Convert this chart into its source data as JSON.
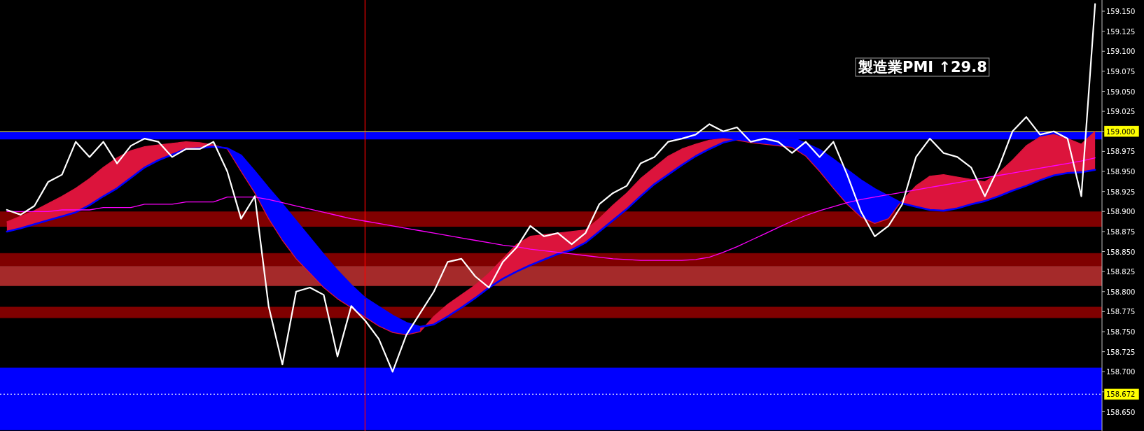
{
  "chart_data": {
    "type": "line",
    "categories": [
      null,
      null,
      null,
      null,
      null,
      null,
      null,
      null,
      null,
      null,
      null,
      null,
      null,
      null,
      null,
      null,
      null,
      null,
      null,
      null,
      null,
      null,
      null,
      null,
      null,
      null,
      null,
      null,
      null,
      null,
      null,
      null,
      null,
      null,
      null,
      null,
      null,
      null,
      null,
      null,
      null,
      null,
      null,
      null,
      null,
      null,
      null,
      null,
      null,
      null,
      null,
      null,
      null,
      null,
      null,
      null,
      null,
      null,
      null,
      null,
      null,
      null,
      null,
      null,
      null,
      null,
      null,
      null,
      null,
      null,
      null,
      null,
      null,
      null,
      null,
      null,
      null,
      null,
      null,
      null
    ],
    "ylim": [
      158.626,
      159.164
    ],
    "yticks": [
      {
        "value": 158.65,
        "label": "158.650"
      },
      {
        "value": 158.675,
        "label": null
      },
      {
        "value": 158.7,
        "label": "158.700"
      },
      {
        "value": 158.725,
        "label": "158.725"
      },
      {
        "value": 158.75,
        "label": "158.750"
      },
      {
        "value": 158.775,
        "label": "158.775"
      },
      {
        "value": 158.8,
        "label": "158.800"
      },
      {
        "value": 158.825,
        "label": "158.825"
      },
      {
        "value": 158.85,
        "label": "158.850"
      },
      {
        "value": 158.875,
        "label": "158.875"
      },
      {
        "value": 158.9,
        "label": "158.900"
      },
      {
        "value": 158.925,
        "label": "158.925"
      },
      {
        "value": 158.95,
        "label": "158.950"
      },
      {
        "value": 158.975,
        "label": "158.975"
      },
      {
        "value": 159.0,
        "label": null
      },
      {
        "value": 159.025,
        "label": "159.025"
      },
      {
        "value": 159.05,
        "label": "159.050"
      },
      {
        "value": 159.075,
        "label": "159.075"
      },
      {
        "value": 159.1,
        "label": "159.100"
      },
      {
        "value": 159.125,
        "label": "159.125"
      },
      {
        "value": 159.15,
        "label": "159.150"
      }
    ],
    "series": [
      {
        "type": "line",
        "color": "#dc143c",
        "values": [
          158.887,
          158.894,
          158.901,
          158.91,
          158.919,
          158.929,
          158.941,
          158.955,
          158.967,
          158.976,
          158.981,
          158.983,
          158.985,
          158.987,
          158.986,
          158.983,
          158.978,
          158.95,
          158.923,
          158.891,
          158.864,
          158.841,
          158.823,
          158.805,
          158.791,
          158.78,
          158.768,
          158.757,
          158.749,
          158.746,
          158.75,
          158.769,
          158.784,
          158.796,
          158.808,
          158.823,
          158.841,
          158.859,
          158.869,
          158.871,
          158.873,
          158.875,
          158.877,
          158.891,
          158.908,
          158.923,
          158.941,
          158.955,
          158.969,
          158.978,
          158.984,
          158.989,
          158.991,
          158.989,
          158.986,
          158.984,
          158.982,
          158.98,
          158.969,
          158.95,
          158.929,
          158.909,
          158.893,
          158.885,
          158.891,
          158.914,
          158.932,
          158.944,
          158.946,
          158.943,
          158.94,
          158.937,
          158.948,
          158.964,
          158.982,
          158.993,
          158.996,
          158.991,
          158.984,
          159.0
        ]
      },
      {
        "type": "line",
        "color": "#0000ff",
        "values": [
          158.875,
          158.879,
          158.884,
          158.889,
          158.894,
          158.899,
          158.908,
          158.919,
          158.929,
          158.942,
          158.955,
          158.964,
          158.971,
          158.978,
          158.979,
          158.981,
          158.979,
          158.97,
          158.95,
          158.929,
          158.909,
          158.888,
          158.867,
          158.846,
          158.826,
          158.808,
          158.792,
          158.781,
          158.77,
          158.761,
          158.756,
          158.759,
          158.769,
          158.78,
          158.792,
          158.805,
          158.816,
          158.825,
          158.833,
          158.84,
          158.847,
          158.852,
          158.861,
          158.875,
          158.889,
          158.903,
          158.919,
          158.934,
          158.946,
          158.958,
          158.969,
          158.978,
          158.986,
          158.99,
          158.994,
          158.995,
          158.994,
          158.992,
          158.985,
          158.977,
          158.965,
          158.952,
          158.939,
          158.928,
          158.919,
          158.91,
          158.906,
          158.902,
          158.901,
          158.904,
          158.909,
          158.913,
          158.919,
          158.926,
          158.932,
          158.939,
          158.945,
          158.948,
          158.949,
          158.952
        ]
      },
      {
        "type": "line",
        "color": "#ff00ff",
        "values": [
          158.9,
          158.9,
          158.9,
          158.9,
          158.902,
          158.902,
          158.902,
          158.905,
          158.905,
          158.905,
          158.909,
          158.909,
          158.909,
          158.912,
          158.912,
          158.912,
          158.918,
          158.918,
          158.918,
          158.915,
          158.911,
          158.907,
          158.903,
          158.899,
          158.895,
          158.891,
          158.888,
          158.885,
          158.882,
          158.879,
          158.876,
          158.873,
          158.87,
          158.867,
          158.864,
          158.861,
          158.858,
          158.856,
          158.853,
          158.851,
          158.849,
          158.847,
          158.845,
          158.843,
          158.841,
          158.84,
          158.839,
          158.839,
          158.839,
          158.839,
          158.84,
          158.843,
          158.849,
          158.856,
          158.864,
          158.872,
          158.88,
          158.888,
          158.895,
          158.901,
          158.906,
          158.911,
          158.915,
          158.918,
          158.921,
          158.924,
          158.927,
          158.93,
          158.933,
          158.936,
          158.939,
          158.942,
          158.945,
          158.948,
          158.951,
          158.954,
          158.957,
          158.96,
          158.963,
          158.967
        ]
      },
      {
        "type": "line",
        "color": "#ffffff",
        "values": [
          158.902,
          158.896,
          158.907,
          158.937,
          158.946,
          158.987,
          158.968,
          158.987,
          158.96,
          158.982,
          158.991,
          158.987,
          158.968,
          158.978,
          158.978,
          158.987,
          158.95,
          158.891,
          158.919,
          158.782,
          158.709,
          158.8,
          158.805,
          158.796,
          158.719,
          158.782,
          158.764,
          158.741,
          158.7,
          158.746,
          158.773,
          158.8,
          158.837,
          158.841,
          158.819,
          158.805,
          158.837,
          158.855,
          158.882,
          158.869,
          158.873,
          158.859,
          158.873,
          158.909,
          158.923,
          158.932,
          158.96,
          158.968,
          158.987,
          158.991,
          158.996,
          159.009,
          159.0,
          159.005,
          158.987,
          158.991,
          158.987,
          158.973,
          158.987,
          158.968,
          158.987,
          158.946,
          158.9,
          158.869,
          158.882,
          158.909,
          158.968,
          158.991,
          158.973,
          158.968,
          158.955,
          158.919,
          158.955,
          159.0,
          159.018,
          158.996,
          159.0,
          158.991,
          158.919,
          159.159
        ]
      }
    ],
    "bands": [
      {
        "axis": "y",
        "from": 158.99,
        "to": 159.0,
        "color": "#0000ff"
      },
      {
        "axis": "y",
        "from": 158.807,
        "to": 158.832,
        "color": "#a52a2a"
      },
      {
        "axis": "y",
        "from": 158.767,
        "to": 158.781,
        "color": "#800000"
      },
      {
        "axis": "y",
        "from": 158.832,
        "to": 158.848,
        "color": "#800000"
      },
      {
        "axis": "y",
        "from": 158.881,
        "to": 158.9,
        "color": "#800000"
      },
      {
        "axis": "y",
        "from": 158.627,
        "to": 158.705,
        "color": "#0000ff"
      }
    ],
    "ref_lines": [
      {
        "axis": "y",
        "value": 159.0,
        "label": "159.000",
        "color": "#c8c800",
        "line_style": "solid"
      },
      {
        "axis": "y",
        "value": 158.672,
        "label": "158.672",
        "color": "#ffffff",
        "line_style": "dotted"
      }
    ],
    "annotations": [
      "製造業PMI ↑29.8"
    ]
  }
}
